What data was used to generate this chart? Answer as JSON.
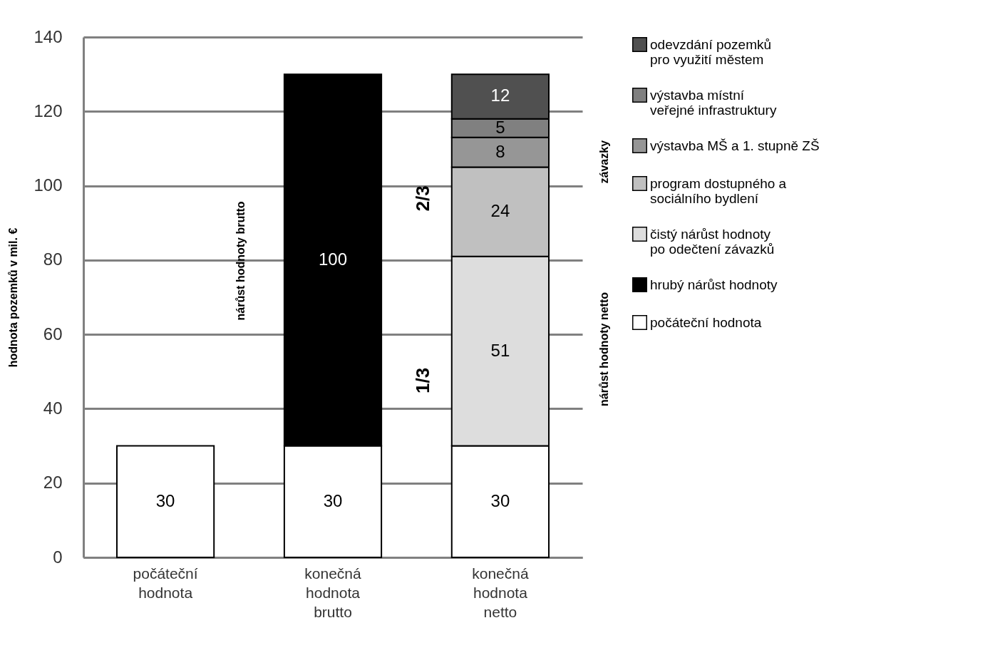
{
  "chart_data": {
    "type": "bar",
    "stacked": true,
    "ylabel": "hodnota pozemků v mil. €",
    "categories": [
      "počáteční hodnota",
      "konečná hodnota brutto",
      "konečná hodnota netto"
    ],
    "series": [
      {
        "name": "počáteční hodnota",
        "color": "#ffffff",
        "values": [
          30,
          30,
          30
        ]
      },
      {
        "name": "hrubý nárůst hodnoty",
        "color": "#000000",
        "values": [
          null,
          100,
          null
        ]
      },
      {
        "name": "čistý nárůst hodnoty po odečtení závazků",
        "color": "#dddddd",
        "values": [
          null,
          null,
          51
        ]
      },
      {
        "name": "program dostupného a sociálního bydlení",
        "color": "#c0c0c0",
        "values": [
          null,
          null,
          24
        ]
      },
      {
        "name": "výstavba MŠ a 1. stupně ZŠ",
        "color": "#969696",
        "values": [
          null,
          null,
          8
        ]
      },
      {
        "name": "výstavba místní veřejné infrastruktury",
        "color": "#808080",
        "values": [
          null,
          null,
          5
        ]
      },
      {
        "name": "odevzdání pozemků pro využití městem",
        "color": "#505050",
        "values": [
          null,
          null,
          12
        ]
      }
    ],
    "ylim": [
      0,
      140
    ],
    "yticks": [
      0,
      20,
      40,
      60,
      80,
      100,
      120,
      140
    ],
    "grid": "y",
    "legend": "right",
    "data_labels": true,
    "annotations": [
      "nárůst hodnoty brutto",
      "2/3",
      "1/3",
      "závazky",
      "nárůst hodnoty netto"
    ]
  }
}
